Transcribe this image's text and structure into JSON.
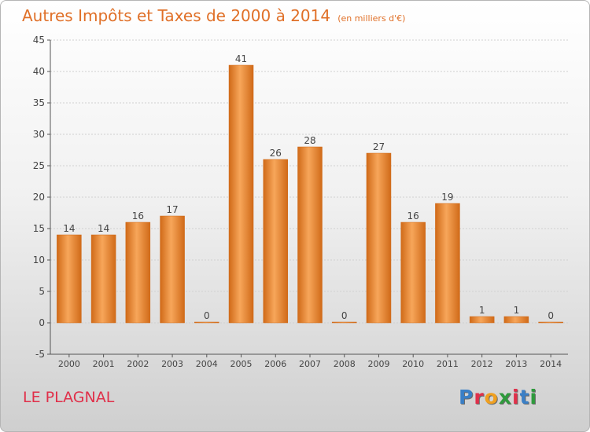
{
  "title": "Autres Impôts et Taxes de 2000 à 2014",
  "unit_label": "(en milliers d'€)",
  "town": "LE PLAGNAL",
  "logo": {
    "text": "Proxiti",
    "letter_colors": [
      "#3a7fc6",
      "#e0304a",
      "#f0a020",
      "#2e9a3c",
      "#e0304a",
      "#3a7fc6",
      "#2e9a3c"
    ]
  },
  "colors": {
    "title": "#e07028",
    "bar_light": "#f7a65a",
    "bar_dark": "#d06a18",
    "axis": "#555555",
    "grid": "#d0d0d0",
    "label": "#444444",
    "town": "#e0304a"
  },
  "chart_data": {
    "type": "bar",
    "title": "Autres Impôts et Taxes de 2000 à 2014",
    "subtitle": "(en milliers d'€)",
    "xlabel": "",
    "ylabel": "",
    "categories": [
      "2000",
      "2001",
      "2002",
      "2003",
      "2004",
      "2005",
      "2006",
      "2007",
      "2008",
      "2009",
      "2010",
      "2011",
      "2012",
      "2013",
      "2014"
    ],
    "values": [
      14,
      14,
      16,
      17,
      0,
      41,
      26,
      28,
      0,
      27,
      16,
      19,
      1,
      1,
      0
    ],
    "ylim": [
      -5,
      45
    ],
    "yticks": [
      -5,
      0,
      5,
      10,
      15,
      20,
      25,
      30,
      35,
      40,
      45
    ],
    "grid": true,
    "legend": "none"
  }
}
